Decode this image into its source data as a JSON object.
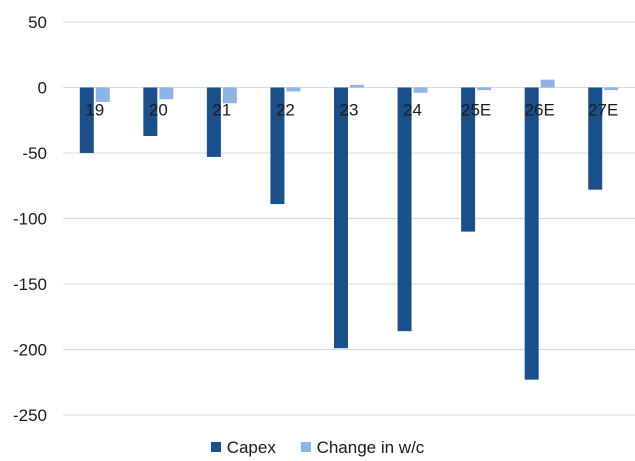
{
  "chart_data": {
    "type": "bar",
    "categories": [
      "19",
      "20",
      "21",
      "22",
      "23",
      "24",
      "25E",
      "26E",
      "27E"
    ],
    "series": [
      {
        "name": "Capex",
        "color": "#1B4F8A",
        "values": [
          -50,
          -37,
          -53,
          -89,
          -199,
          -186,
          -110,
          -223,
          -78
        ]
      },
      {
        "name": "Change in w/c",
        "color": "#8EB4E3",
        "values": [
          -11,
          -9,
          -12,
          -3,
          2,
          -4,
          -2,
          6,
          -2
        ]
      }
    ],
    "y_ticks": [
      "50",
      "0",
      "-50",
      "-100",
      "-150",
      "-200",
      "-250"
    ],
    "ylim": [
      -250,
      50
    ],
    "grid": true,
    "legend_position": "bottom",
    "title": "",
    "xlabel": "",
    "ylabel": ""
  }
}
